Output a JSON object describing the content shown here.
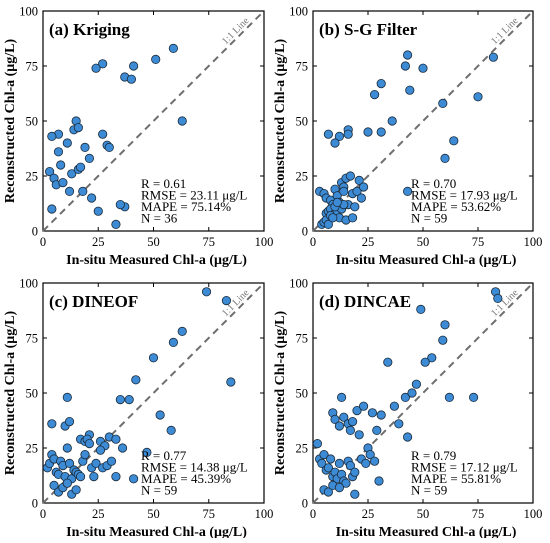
{
  "chart_data": [
    {
      "type": "scatter",
      "title": "(a) Kriging",
      "xlabel": "In-situ Measured Chl-a (μg/L)",
      "ylabel": "Reconstructed Chl-a (μg/L)",
      "xlim": [
        0,
        100
      ],
      "ylim": [
        0,
        100
      ],
      "xticks": [
        "0",
        "25",
        "50",
        "75",
        "100"
      ],
      "yticks": [
        "0",
        "25",
        "50",
        "75",
        "100"
      ],
      "reference_line": "1:1 Line",
      "stats": [
        "R = 0.61",
        "RMSE = 23.11 μg/L",
        "MAPE = 75.14%",
        "N = 36"
      ],
      "x": [
        27,
        59,
        51,
        41,
        37,
        40,
        24,
        3,
        7,
        14,
        15,
        27,
        4,
        16,
        19,
        29,
        30,
        37,
        7,
        11,
        21,
        63,
        4,
        5,
        8,
        6,
        9,
        12,
        13,
        16,
        17,
        18,
        22,
        25,
        33,
        35
      ],
      "y": [
        76,
        83,
        78,
        75,
        70,
        69,
        74,
        27,
        44,
        46,
        50,
        44,
        10,
        47,
        38,
        39,
        38,
        11,
        36,
        40,
        33,
        50,
        43,
        24,
        30,
        21,
        22,
        18,
        26,
        28,
        29,
        18,
        15,
        9,
        3,
        12
      ]
    },
    {
      "type": "scatter",
      "title": "(b) S-G Filter",
      "xlabel": "In-situ Measured Chl-a (μg/L)",
      "ylabel": "Reconstructed Chl-a (μg/L)",
      "xlim": [
        0,
        100
      ],
      "ylim": [
        0,
        100
      ],
      "xticks": [
        "0",
        "25",
        "50",
        "75",
        "100"
      ],
      "yticks": [
        "0",
        "25",
        "50",
        "75",
        "100"
      ],
      "reference_line": "1:1 Line",
      "stats": [
        "R = 0.70",
        "RMSE = 17.93 μg/L",
        "MAPE = 53.62%",
        "N = 59"
      ],
      "x": [
        43,
        42,
        50,
        82,
        31,
        44,
        59,
        28,
        25,
        12,
        7,
        10,
        16,
        16,
        36,
        31,
        75,
        64,
        60,
        43,
        3,
        5,
        6,
        8,
        9,
        10,
        11,
        12,
        13,
        14,
        15,
        16,
        17,
        18,
        19,
        20,
        21,
        22,
        23,
        6,
        7,
        8,
        9,
        10,
        11,
        12,
        13,
        14,
        15,
        4,
        5,
        6,
        7,
        8,
        9,
        10,
        11,
        14,
        18
      ],
      "y": [
        80,
        75,
        74,
        79,
        67,
        64,
        58,
        62,
        45,
        43,
        44,
        40,
        46,
        44,
        50,
        45,
        61,
        41,
        33,
        18,
        18,
        17,
        15,
        14,
        12,
        19,
        16,
        13,
        22,
        20,
        24,
        12,
        25,
        17,
        11,
        18,
        23,
        15,
        20,
        8,
        9,
        10,
        7,
        8,
        9,
        6,
        10,
        12,
        5,
        3,
        4,
        5,
        3,
        7,
        6,
        11,
        13,
        18,
        6
      ]
    },
    {
      "type": "scatter",
      "title": "(c) DINEOF",
      "xlabel": "In-situ Measured Chl-a (μg/L)",
      "ylabel": "Reconstructed Chl-a (μg/L)",
      "xlim": [
        0,
        100
      ],
      "ylim": [
        0,
        100
      ],
      "xticks": [
        "0",
        "25",
        "50",
        "75",
        "100"
      ],
      "yticks": [
        "0",
        "25",
        "50",
        "75",
        "100"
      ],
      "reference_line": "1:1 Line",
      "stats": [
        "R = 0.77",
        "RMSE = 14.38 μg/L",
        "MAPE = 45.39%",
        "N = 59"
      ],
      "x": [
        74,
        83,
        63,
        59,
        50,
        42,
        35,
        39,
        47,
        53,
        85,
        58,
        11,
        4,
        10,
        12,
        17,
        19,
        21,
        26,
        28,
        30,
        33,
        36,
        2,
        3,
        4,
        5,
        6,
        7,
        8,
        9,
        10,
        11,
        12,
        13,
        14,
        15,
        16,
        17,
        18,
        19,
        20,
        21,
        22,
        23,
        24,
        26,
        27,
        29,
        31,
        5,
        7,
        9,
        11,
        13,
        15,
        33,
        41
      ],
      "y": [
        96,
        92,
        78,
        73,
        66,
        56,
        47,
        47,
        23,
        40,
        55,
        33,
        48,
        36,
        35,
        37,
        29,
        28,
        31,
        28,
        26,
        30,
        29,
        25,
        16,
        18,
        22,
        20,
        14,
        13,
        19,
        17,
        12,
        25,
        18,
        11,
        15,
        14,
        13,
        12,
        19,
        22,
        29,
        27,
        16,
        12,
        18,
        24,
        16,
        17,
        19,
        8,
        5,
        7,
        9,
        4,
        6,
        12,
        11
      ]
    },
    {
      "type": "scatter",
      "title": "(d) DINCAE",
      "xlabel": "In-situ Measured Chl-a (μg/L)",
      "ylabel": "Reconstructed Chl-a (μg/L)",
      "xlim": [
        0,
        100
      ],
      "ylim": [
        0,
        100
      ],
      "xticks": [
        "0",
        "25",
        "50",
        "75",
        "100"
      ],
      "yticks": [
        "0",
        "25",
        "50",
        "75",
        "100"
      ],
      "reference_line": "1:1 Line",
      "stats": [
        "R = 0.79",
        "RMSE = 17.12 μg/L",
        "MAPE = 55.81%",
        "N = 59"
      ],
      "x": [
        83,
        84,
        49,
        60,
        59,
        54,
        47,
        34,
        37,
        42,
        45,
        62,
        73,
        51,
        13,
        9,
        10,
        12,
        14,
        16,
        17,
        18,
        20,
        21,
        23,
        25,
        27,
        29,
        31,
        39,
        43,
        2,
        3,
        4,
        5,
        6,
        7,
        8,
        9,
        10,
        11,
        12,
        13,
        14,
        15,
        16,
        17,
        18,
        19,
        22,
        24,
        26,
        28,
        5,
        7,
        9,
        12,
        19,
        30
      ],
      "y": [
        96,
        93,
        88,
        81,
        74,
        66,
        54,
        64,
        44,
        48,
        50,
        48,
        48,
        64,
        48,
        41,
        38,
        35,
        39,
        36,
        33,
        37,
        42,
        31,
        44,
        25,
        41,
        33,
        40,
        36,
        30,
        27,
        20,
        18,
        22,
        15,
        16,
        20,
        12,
        14,
        11,
        18,
        13,
        10,
        9,
        19,
        17,
        12,
        14,
        20,
        18,
        22,
        19,
        6,
        5,
        8,
        7,
        4,
        10
      ]
    }
  ]
}
